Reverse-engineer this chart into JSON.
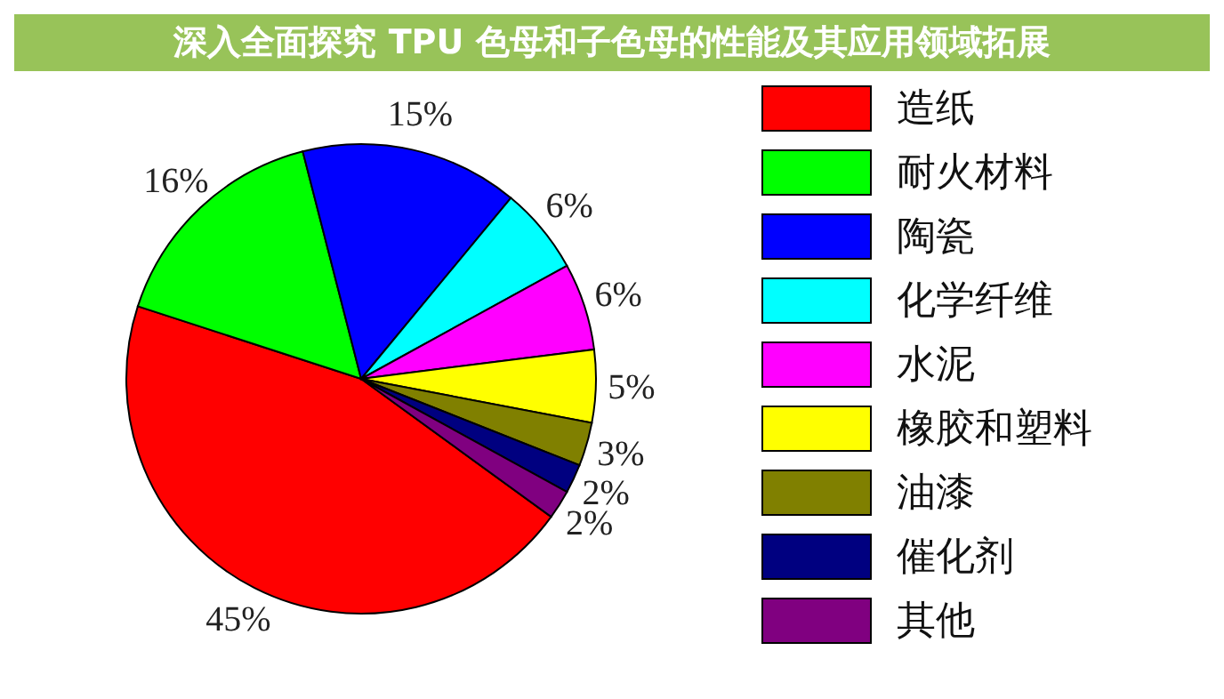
{
  "chart_data": {
    "type": "pie",
    "title": "深入全面探究 TPU 色母和子色母的性能及其应用领域拓展",
    "categories": [
      "造纸",
      "耐火材料",
      "陶瓷",
      "化学纤维",
      "水泥",
      "橡胶和塑料",
      "油漆",
      "催化剂",
      "其他"
    ],
    "values": [
      45,
      16,
      15,
      6,
      6,
      5,
      3,
      2,
      2
    ],
    "colors": [
      "#ff0000",
      "#00ff00",
      "#0000ff",
      "#00ffff",
      "#ff00ff",
      "#ffff00",
      "#808000",
      "#000080",
      "#800080"
    ],
    "value_labels": [
      "45%",
      "16%",
      "15%",
      "6%",
      "6%",
      "5%",
      "3%",
      "2%",
      "2%"
    ],
    "legend": "right"
  }
}
